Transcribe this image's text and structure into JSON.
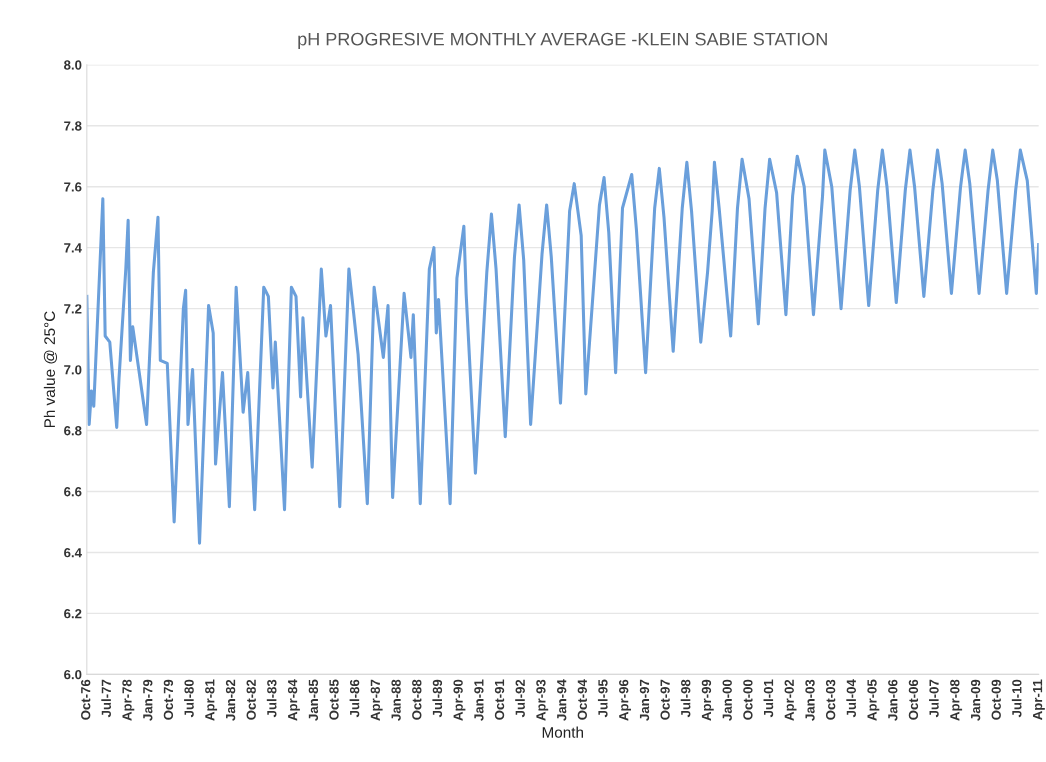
{
  "chart_data": {
    "type": "line",
    "title": "pH PROGRESIVE MONTHLY AVERAGE -KLEIN SABIE STATION",
    "xlabel": "Month",
    "ylabel": "Ph value @ 25°C",
    "x": [
      "1976-10",
      "1976-11",
      "1976-12",
      "1977-01",
      "1977-05",
      "1977-06",
      "1977-08",
      "1977-11",
      "1977-12",
      "1978-03",
      "1978-04",
      "1978-05",
      "1978-06",
      "1978-12",
      "1979-03",
      "1979-05",
      "1979-06",
      "1979-09",
      "1979-12",
      "1980-04",
      "1980-05",
      "1980-06",
      "1980-08",
      "1980-11",
      "1981-03",
      "1981-05",
      "1981-06",
      "1981-09",
      "1981-12",
      "1982-03",
      "1982-06",
      "1982-08",
      "1982-11",
      "1983-03",
      "1983-05",
      "1983-07",
      "1983-08",
      "1983-12",
      "1984-03",
      "1984-05",
      "1984-07",
      "1984-08",
      "1984-12",
      "1985-04",
      "1985-06",
      "1985-08",
      "1985-12",
      "1986-04",
      "1986-08",
      "1986-12",
      "1987-03",
      "1987-07",
      "1987-09",
      "1987-11",
      "1988-04",
      "1988-07",
      "1988-08",
      "1988-11",
      "1989-03",
      "1989-05",
      "1989-06",
      "1989-07",
      "1989-12",
      "1990-03",
      "1990-06",
      "1990-07",
      "1990-11",
      "1991-04",
      "1991-06",
      "1991-08",
      "1991-12",
      "1992-04",
      "1992-06",
      "1992-08",
      "1992-11",
      "1993-04",
      "1993-06",
      "1993-08",
      "1993-12",
      "1994-04",
      "1994-06",
      "1994-09",
      "1994-11",
      "1995-05",
      "1995-07",
      "1995-09",
      "1995-12",
      "1996-03",
      "1996-07",
      "1996-09",
      "1997-01",
      "1997-05",
      "1997-07",
      "1997-09",
      "1998-01",
      "1998-05",
      "1998-07",
      "1998-09",
      "1999-01",
      "1999-04",
      "1999-06",
      "1999-07",
      "1999-09",
      "2000-02",
      "2000-05",
      "2000-07",
      "2000-10",
      "2001-02",
      "2001-05",
      "2001-07",
      "2001-10",
      "2002-02",
      "2002-05",
      "2002-07",
      "2002-10",
      "2003-02",
      "2003-06",
      "2003-07",
      "2003-10",
      "2004-02",
      "2004-06",
      "2004-08",
      "2004-10",
      "2005-02",
      "2005-06",
      "2005-08",
      "2005-10",
      "2006-02",
      "2006-06",
      "2006-08",
      "2006-10",
      "2007-02",
      "2007-06",
      "2007-08",
      "2007-10",
      "2008-02",
      "2008-06",
      "2008-08",
      "2008-10",
      "2009-02",
      "2009-06",
      "2009-08",
      "2009-10",
      "2010-02",
      "2010-06",
      "2010-08",
      "2010-11",
      "2011-03",
      "2011-04"
    ],
    "series": [
      {
        "color": "#6a9fdb",
        "values": [
          7.24,
          6.82,
          6.93,
          6.88,
          7.56,
          7.11,
          7.09,
          6.81,
          6.97,
          7.33,
          7.49,
          7.03,
          7.14,
          6.82,
          7.32,
          7.5,
          7.03,
          7.02,
          6.5,
          7.2,
          7.26,
          6.82,
          7.0,
          6.43,
          7.21,
          7.12,
          6.69,
          6.99,
          6.55,
          7.27,
          6.86,
          6.99,
          6.54,
          7.27,
          7.24,
          6.94,
          7.09,
          6.54,
          7.27,
          7.24,
          6.91,
          7.17,
          6.68,
          7.33,
          7.11,
          7.21,
          6.55,
          7.33,
          7.05,
          6.56,
          7.27,
          7.04,
          7.21,
          6.58,
          7.25,
          7.04,
          7.18,
          6.56,
          7.33,
          7.4,
          7.12,
          7.23,
          6.56,
          7.3,
          7.47,
          7.25,
          6.66,
          7.32,
          7.51,
          7.33,
          6.78,
          7.37,
          7.54,
          7.36,
          6.82,
          7.38,
          7.54,
          7.37,
          6.89,
          7.52,
          7.61,
          7.44,
          6.92,
          7.54,
          7.63,
          7.45,
          6.99,
          7.53,
          7.64,
          7.46,
          6.99,
          7.53,
          7.66,
          7.5,
          7.06,
          7.53,
          7.68,
          7.52,
          7.09,
          7.32,
          7.52,
          7.68,
          7.53,
          7.11,
          7.53,
          7.69,
          7.56,
          7.15,
          7.53,
          7.69,
          7.58,
          7.18,
          7.57,
          7.7,
          7.6,
          7.18,
          7.57,
          7.72,
          7.6,
          7.2,
          7.59,
          7.72,
          7.6,
          7.21,
          7.59,
          7.72,
          7.6,
          7.22,
          7.59,
          7.72,
          7.6,
          7.24,
          7.59,
          7.72,
          7.61,
          7.25,
          7.6,
          7.72,
          7.61,
          7.25,
          7.59,
          7.72,
          7.62,
          7.25,
          7.59,
          7.72,
          7.62,
          7.25,
          7.41
        ]
      }
    ],
    "xlim": [
      "1976-10",
      "2011-04"
    ],
    "xticks": [
      {
        "value": "1976-10",
        "label": "Oct-76"
      },
      {
        "value": "1977-07",
        "label": "Jul-77"
      },
      {
        "value": "1978-04",
        "label": "Apr-78"
      },
      {
        "value": "1979-01",
        "label": "Jan-79"
      },
      {
        "value": "1979-10",
        "label": "Oct-79"
      },
      {
        "value": "1980-07",
        "label": "Jul-80"
      },
      {
        "value": "1981-04",
        "label": "Apr-81"
      },
      {
        "value": "1982-01",
        "label": "Jan-82"
      },
      {
        "value": "1982-10",
        "label": "Oct-82"
      },
      {
        "value": "1983-07",
        "label": "Jul-83"
      },
      {
        "value": "1984-04",
        "label": "Apr-84"
      },
      {
        "value": "1985-01",
        "label": "Jan-85"
      },
      {
        "value": "1985-10",
        "label": "Oct-85"
      },
      {
        "value": "1986-07",
        "label": "Jul-86"
      },
      {
        "value": "1987-04",
        "label": "Apr-87"
      },
      {
        "value": "1988-01",
        "label": "Jan-88"
      },
      {
        "value": "1988-10",
        "label": "Oct-88"
      },
      {
        "value": "1989-07",
        "label": "Jul-89"
      },
      {
        "value": "1990-04",
        "label": "Apr-90"
      },
      {
        "value": "1991-01",
        "label": "Jan-91"
      },
      {
        "value": "1991-10",
        "label": "Oct-91"
      },
      {
        "value": "1992-07",
        "label": "Jul-92"
      },
      {
        "value": "1993-04",
        "label": "Apr-93"
      },
      {
        "value": "1994-01",
        "label": "Jan-94"
      },
      {
        "value": "1994-10",
        "label": "Oct-94"
      },
      {
        "value": "1995-07",
        "label": "Jul-95"
      },
      {
        "value": "1996-04",
        "label": "Apr-96"
      },
      {
        "value": "1997-01",
        "label": "Jan-97"
      },
      {
        "value": "1997-10",
        "label": "Oct-97"
      },
      {
        "value": "1998-07",
        "label": "Jul-98"
      },
      {
        "value": "1999-04",
        "label": "Apr-99"
      },
      {
        "value": "2000-01",
        "label": "Jan-00"
      },
      {
        "value": "2000-10",
        "label": "Oct-00"
      },
      {
        "value": "2001-07",
        "label": "Jul-01"
      },
      {
        "value": "2002-04",
        "label": "Apr-02"
      },
      {
        "value": "2003-01",
        "label": "Jan-03"
      },
      {
        "value": "2003-10",
        "label": "Oct-03"
      },
      {
        "value": "2004-07",
        "label": "Jul-04"
      },
      {
        "value": "2005-04",
        "label": "Apr-05"
      },
      {
        "value": "2006-01",
        "label": "Jan-06"
      },
      {
        "value": "2006-10",
        "label": "Oct-06"
      },
      {
        "value": "2007-07",
        "label": "Jul-07"
      },
      {
        "value": "2008-04",
        "label": "Apr-08"
      },
      {
        "value": "2009-01",
        "label": "Jan-09"
      },
      {
        "value": "2009-10",
        "label": "Oct-09"
      },
      {
        "value": "2010-07",
        "label": "Jul-10"
      },
      {
        "value": "2011-04",
        "label": "Apr-11"
      }
    ],
    "ylim": [
      6.0,
      8.0
    ],
    "yticks": [
      {
        "value": 6.0,
        "label": "6.0"
      },
      {
        "value": 6.2,
        "label": "6.2"
      },
      {
        "value": 6.4,
        "label": "6.4"
      },
      {
        "value": 6.6,
        "label": "6.6"
      },
      {
        "value": 6.8,
        "label": "6.8"
      },
      {
        "value": 7.0,
        "label": "7.0"
      },
      {
        "value": 7.2,
        "label": "7.2"
      },
      {
        "value": 7.4,
        "label": "7.4"
      },
      {
        "value": 7.6,
        "label": "7.6"
      },
      {
        "value": 7.8,
        "label": "7.8"
      },
      {
        "value": 8.0,
        "label": "8.0"
      }
    ],
    "grid": "y",
    "marker": "none",
    "line_style": "solid"
  }
}
